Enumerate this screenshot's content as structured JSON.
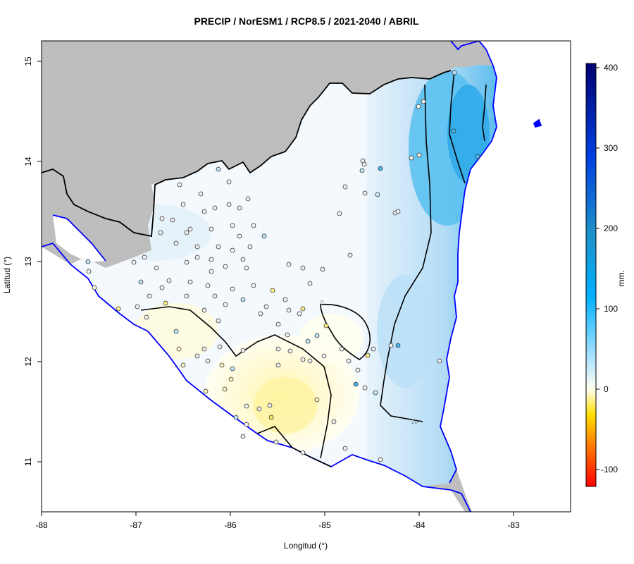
{
  "title": "PRECIP / NorESM1 / RCP8.5 / 2021-2040 / ABRIL",
  "xlabel": "Longitud (°)",
  "ylabel": "Latitud (°)",
  "colorbar": {
    "unit_label": "mm.",
    "ticks": [
      "400",
      "300",
      "200",
      "100",
      "0",
      "-100"
    ]
  },
  "chart_data": {
    "type": "heatmap",
    "title": "PRECIP / NorESM1 / RCP8.5 / 2021-2040 / ABRIL",
    "xlabel": "Longitud (°)",
    "ylabel": "Latitud (°)",
    "xlim": [
      -88,
      -82.4
    ],
    "ylim": [
      10.5,
      15.2
    ],
    "x_ticks": [
      "-88",
      "-87",
      "-86",
      "-85",
      "-84",
      "-83"
    ],
    "y_ticks": [
      "11",
      "12",
      "13",
      "14",
      "15"
    ],
    "colorbar_range": [
      -120,
      405
    ],
    "contour_labels": [
      "0",
      "20"
    ],
    "colors": {
      "land_outside": "#bebebe",
      "ocean": "#ffffff",
      "coast_line": "#0000ff",
      "border_line": "#000000",
      "contour_line": "#000000"
    }
  }
}
